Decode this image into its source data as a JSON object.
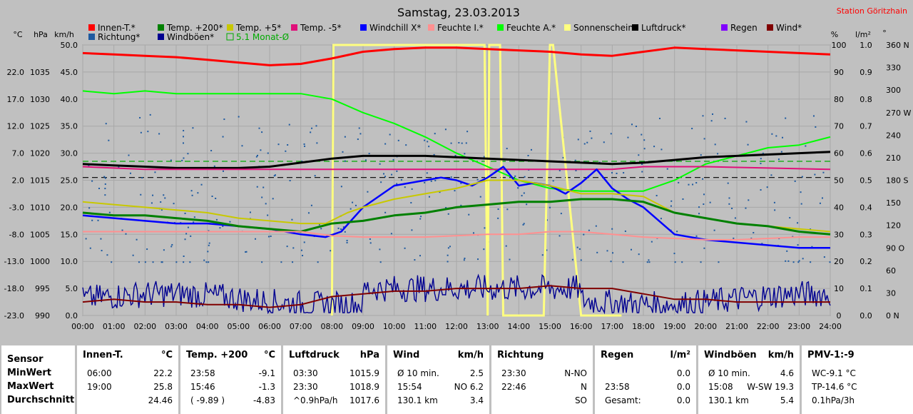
{
  "chart_data": {
    "type": "line",
    "title": "Samstag, 23.03.2013",
    "station": "Station Göritzhain",
    "axis_headers": {
      "temp": "°C",
      "pressure": "hPa",
      "wind": "km/h",
      "percent": "%",
      "rain": "l/m²",
      "direction": "°"
    },
    "axes": {
      "temp": {
        "ticks": [
          "22.0",
          "17.0",
          "12.0",
          "7.0",
          "2.0",
          "-3.0",
          "-8.0",
          "-13.0",
          "-18.0",
          "-23.0"
        ],
        "range": [
          -23,
          27
        ]
      },
      "pressure": {
        "ticks": [
          "1035",
          "1030",
          "1025",
          "1020",
          "1015",
          "1010",
          "1005",
          "1000",
          "995",
          "990"
        ],
        "range": [
          990,
          1040
        ]
      },
      "wind": {
        "ticks": [
          "50.0",
          "45.0",
          "40.0",
          "35.0",
          "30.0",
          "25.0",
          "20.0",
          "15.0",
          "10.0",
          "5.0",
          "0.0"
        ],
        "range": [
          0,
          50
        ]
      },
      "percent": {
        "ticks": [
          "100",
          "90",
          "80",
          "70",
          "60",
          "50",
          "40",
          "30",
          "20",
          "10",
          "0"
        ],
        "range": [
          0,
          100
        ]
      },
      "rain": {
        "ticks": [
          "1.0",
          "0.9",
          "0.8",
          "0.7",
          "0.6",
          "0.5",
          "0.4",
          "0.3",
          "0.2",
          "0.1",
          "0.0"
        ],
        "range": [
          0,
          1
        ]
      },
      "direction": {
        "ticks": [
          "360 N",
          "330",
          "300",
          "270 W",
          "240",
          "210",
          "180 S",
          "150",
          "120",
          "90 O",
          "60",
          "30",
          "0 N"
        ],
        "range": [
          0,
          360
        ]
      },
      "x": {
        "ticks": [
          "00:00",
          "01:00",
          "02:00",
          "03:00",
          "04:00",
          "05:00",
          "06:00",
          "07:00",
          "08:00",
          "09:00",
          "10:00",
          "11:00",
          "12:00",
          "13:00",
          "14:00",
          "15:00",
          "16:00",
          "17:00",
          "18:00",
          "19:00",
          "20:00",
          "21:00",
          "22:00",
          "23:00",
          "24:00"
        ],
        "range_hours": [
          0,
          24
        ]
      }
    },
    "legend": [
      {
        "name": "Innen-T.*",
        "color": "#ff0000"
      },
      {
        "name": "Temp. +200*",
        "color": "#008000"
      },
      {
        "name": "Temp. +5*",
        "color": "#c8c800"
      },
      {
        "name": "Temp. -5*",
        "color": "#e0107a"
      },
      {
        "name": "Windchill X*",
        "color": "#0000ff"
      },
      {
        "name": "Feuchte I.*",
        "color": "#ff9090"
      },
      {
        "name": "Feuchte A.*",
        "color": "#00ff00"
      },
      {
        "name": "Sonnenschein",
        "color": "#ffff80"
      },
      {
        "name": "Luftdruck*",
        "color": "#000000"
      },
      {
        "name": "Regen",
        "color": "#8000ff"
      },
      {
        "name": "Wind*",
        "color": "#800000"
      },
      {
        "name": "Richtung*",
        "color": "#1e5aa0"
      },
      {
        "name": "Windböen*",
        "color": "#000090"
      },
      {
        "name": "5.1 Monat-Ø",
        "color": "#00aa00"
      }
    ],
    "series": [
      {
        "name": "Innen-T.*",
        "axis": "percent",
        "color": "#ff0000",
        "width": 3,
        "x": [
          0,
          1,
          2,
          3,
          4,
          5,
          6,
          7,
          8,
          9,
          10,
          11,
          12,
          13,
          14,
          15,
          16,
          17,
          18,
          19,
          20,
          21,
          22,
          23,
          24
        ],
        "y": [
          97,
          96.5,
          96,
          95.5,
          94.5,
          93.5,
          92.5,
          93,
          95,
          97.5,
          98.5,
          99,
          99,
          98.5,
          98,
          97.5,
          96.5,
          96,
          97.5,
          99,
          98.5,
          98,
          97.5,
          97,
          96.5
        ]
      },
      {
        "name": "Feuchte A.*",
        "axis": "percent",
        "color": "#00ff00",
        "width": 2,
        "x": [
          0,
          1,
          2,
          3,
          4,
          5,
          6,
          7,
          8,
          9,
          10,
          11,
          12,
          13,
          14,
          15,
          16,
          17,
          18,
          19,
          20,
          21,
          22,
          23,
          24
        ],
        "y": [
          83,
          82,
          83,
          82,
          82,
          82,
          82,
          82,
          80,
          75,
          71,
          66,
          60,
          55,
          50,
          47,
          46,
          46,
          46,
          50,
          56,
          59,
          62,
          63,
          66
        ]
      },
      {
        "name": "Luftdruck*",
        "axis": "percent",
        "color": "#000000",
        "width": 3,
        "x": [
          0,
          1,
          2,
          3,
          4,
          5,
          6,
          7,
          8,
          9,
          10,
          11,
          12,
          13,
          14,
          15,
          16,
          17,
          18,
          19,
          20,
          21,
          22,
          23,
          24
        ],
        "y": [
          56,
          55.5,
          55,
          54.5,
          54.5,
          54.5,
          55,
          56.5,
          58,
          59,
          59,
          59,
          58.5,
          58,
          57.5,
          57,
          56.5,
          56,
          56.5,
          57.5,
          58.5,
          59,
          59.5,
          60,
          60.5
        ]
      },
      {
        "name": "Temp. -5*",
        "axis": "percent",
        "color": "#e0107a",
        "width": 2,
        "x": [
          0,
          2,
          4,
          6,
          8,
          10,
          12,
          14,
          16,
          17,
          18,
          20,
          22,
          24
        ],
        "y": [
          55,
          54,
          54,
          54,
          54,
          54,
          54,
          54,
          54,
          54,
          55,
          55,
          54.5,
          54
        ]
      },
      {
        "name": "Windchill X*",
        "axis": "percent",
        "color": "#0000ff",
        "width": 2.5,
        "x": [
          0,
          1,
          2,
          3,
          4,
          5,
          6,
          7,
          7.8,
          8.3,
          9,
          10,
          11,
          11.5,
          12,
          12.5,
          13,
          13.5,
          14,
          14.5,
          15,
          15.5,
          16,
          16.5,
          17,
          17.5,
          18,
          19,
          20,
          21,
          22,
          23,
          24
        ],
        "y": [
          37,
          36,
          35,
          34,
          34,
          33,
          32,
          30,
          29,
          31,
          40,
          48,
          50,
          51,
          50,
          48,
          51,
          55,
          48,
          49,
          48,
          45,
          49,
          54,
          47,
          43,
          40,
          30,
          28,
          27,
          26,
          25,
          25
        ]
      },
      {
        "name": "Temp. +5*",
        "axis": "percent",
        "color": "#c8c800",
        "width": 2,
        "x": [
          0,
          1,
          2,
          3,
          4,
          5,
          6,
          7,
          7.8,
          8.5,
          9,
          10,
          11,
          12,
          13,
          14,
          15,
          16,
          17,
          18,
          19,
          20,
          21,
          22,
          23,
          24
        ],
        "y": [
          42,
          41,
          40,
          39,
          38,
          36,
          35,
          34,
          34,
          38,
          40,
          43,
          45,
          47,
          50,
          50,
          48,
          45,
          45,
          44,
          38,
          36,
          34,
          33,
          32,
          31
        ]
      },
      {
        "name": "Temp. +200*",
        "axis": "percent",
        "color": "#008000",
        "width": 3,
        "x": [
          0,
          1,
          2,
          3,
          4,
          5,
          6,
          7,
          8,
          9,
          10,
          11,
          12,
          13,
          14,
          15,
          16,
          17,
          18,
          19,
          20,
          21,
          22,
          23,
          24
        ],
        "y": [
          38,
          37,
          37,
          36,
          35,
          33,
          32,
          31,
          34,
          35,
          37,
          38,
          40,
          41,
          42,
          42,
          43,
          43,
          42,
          38,
          36,
          34,
          33,
          31,
          30
        ]
      },
      {
        "name": "Feuchte I.*",
        "axis": "percent",
        "color": "#ff9090",
        "width": 2,
        "x": [
          0,
          1,
          2,
          3,
          4,
          5,
          6,
          7,
          8,
          9,
          10,
          11,
          12,
          13,
          14,
          15,
          16,
          17,
          18,
          19,
          20,
          21,
          22,
          23,
          24
        ],
        "y": [
          31,
          31,
          31,
          31,
          31,
          31,
          31,
          31,
          29.5,
          29,
          29,
          29,
          29.5,
          30,
          30,
          31,
          31,
          30,
          29,
          28.5,
          28,
          28,
          28.5,
          29,
          29
        ]
      },
      {
        "name": "Wind*",
        "axis": "percent",
        "color": "#800000",
        "width": 2,
        "x": [
          0,
          1,
          2,
          3,
          4,
          5,
          6,
          7,
          8,
          9,
          10,
          11,
          12,
          13,
          14,
          15,
          16,
          17,
          18,
          19,
          20,
          21,
          22,
          23,
          24
        ],
        "y": [
          5,
          6,
          5,
          5,
          4,
          4,
          3,
          4,
          7,
          8,
          9,
          9,
          10,
          10,
          10,
          11,
          10,
          10,
          8,
          6,
          6,
          5,
          5,
          5,
          5
        ]
      }
    ],
    "sunshine": {
      "name": "Sonnenschein",
      "axis": "percent",
      "color": "#ffff80",
      "x": [
        8.0,
        8.05,
        12.9,
        13.0,
        13.05,
        13.4,
        13.5,
        14.8,
        15.0,
        15.1,
        16.0,
        16.1,
        17.2,
        17.3
      ],
      "y": [
        0,
        100,
        100,
        0,
        100,
        100,
        0,
        0,
        100,
        100,
        0,
        0,
        0,
        0
      ]
    },
    "reference_lines": [
      {
        "axis": "percent",
        "value": 51,
        "color": "#000000",
        "dash": true
      },
      {
        "axis": "percent",
        "value": 57,
        "color": "#00aa00",
        "dash": true
      }
    ]
  },
  "stats": {
    "row_labels": [
      "Sensor",
      "MinWert",
      "MaxWert",
      "Durchschnitt"
    ],
    "columns": [
      {
        "title": "Innen-T.",
        "unit": "°C",
        "rows": [
          [
            "06:00",
            "22.2"
          ],
          [
            "19:00",
            "25.8"
          ],
          [
            "",
            "24.46"
          ]
        ]
      },
      {
        "title": "Temp. +200",
        "unit": "°C",
        "rows": [
          [
            "23:58",
            "-9.1"
          ],
          [
            "15:46",
            "-1.3"
          ],
          [
            "( -9.89 )",
            "-4.83"
          ]
        ]
      },
      {
        "title": "Luftdruck",
        "unit": "hPa",
        "rows": [
          [
            "03:30",
            "1015.9"
          ],
          [
            "23:30",
            "1018.9"
          ],
          [
            "^0.9hPa/h",
            "1017.6"
          ]
        ]
      },
      {
        "title": "Wind",
        "unit": "km/h",
        "rows": [
          [
            "Ø 10 min.",
            "2.5"
          ],
          [
            "15:54",
            "NO 6.2"
          ],
          [
            "130.1 km",
            "3.4"
          ]
        ]
      },
      {
        "title": "Richtung",
        "unit": "",
        "rows": [
          [
            "23:30",
            "N-NO"
          ],
          [
            "22:46",
            "N"
          ],
          [
            "",
            "SO"
          ]
        ]
      },
      {
        "title": "Regen",
        "unit": "l/m²",
        "rows": [
          [
            "",
            "0.0"
          ],
          [
            "23:58",
            "0.0"
          ],
          [
            "Gesamt:",
            "0.0"
          ]
        ]
      },
      {
        "title": "Windböen",
        "unit": "km/h",
        "rows": [
          [
            "Ø 10 min.",
            "4.6"
          ],
          [
            "15:08",
            "W-SW 19.3"
          ],
          [
            "130.1 km",
            "5.4"
          ]
        ]
      },
      {
        "title": "PMV-1:-9",
        "unit": "",
        "rows": [
          [
            "WC-9.1 °C",
            ""
          ],
          [
            "TP-14.6 °C",
            ""
          ],
          [
            "0.1hPa/3h",
            ""
          ]
        ]
      }
    ]
  }
}
